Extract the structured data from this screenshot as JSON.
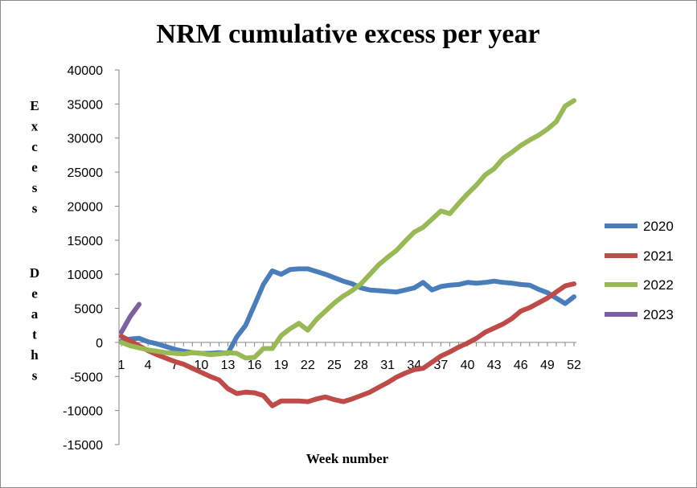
{
  "chart_data": {
    "type": "line",
    "title": "NRM cumulative excess per year",
    "xlabel": "Week number",
    "ylabel": "Excess Deaths",
    "ylim": [
      -15000,
      40000
    ],
    "yticks": [
      40000,
      35000,
      30000,
      25000,
      20000,
      15000,
      10000,
      5000,
      0,
      -5000,
      -10000,
      -15000
    ],
    "xlim": [
      1,
      52
    ],
    "xticks": [
      1,
      4,
      7,
      10,
      13,
      16,
      19,
      22,
      25,
      28,
      31,
      34,
      37,
      40,
      43,
      46,
      49,
      52
    ],
    "legend_position": "right",
    "grid": false,
    "series": [
      {
        "name": "2020",
        "color": "#4a7ebb",
        "x": [
          1,
          2,
          3,
          4,
          5,
          6,
          7,
          8,
          9,
          10,
          11,
          12,
          13,
          14,
          15,
          16,
          17,
          18,
          19,
          20,
          21,
          22,
          23,
          24,
          25,
          26,
          27,
          28,
          29,
          30,
          31,
          32,
          33,
          34,
          35,
          36,
          37,
          38,
          39,
          40,
          41,
          42,
          43,
          44,
          45,
          46,
          47,
          48,
          49,
          50,
          51,
          52
        ],
        "values": [
          200,
          500,
          600,
          100,
          -200,
          -600,
          -1000,
          -1300,
          -1500,
          -1600,
          -1600,
          -1500,
          -1600,
          800,
          2500,
          5500,
          8500,
          10500,
          10000,
          10700,
          10800,
          10800,
          10400,
          10000,
          9500,
          9000,
          8600,
          8000,
          7700,
          7600,
          7500,
          7400,
          7700,
          8000,
          8800,
          7700,
          8200,
          8400,
          8500,
          8800,
          8700,
          8800,
          9000,
          8800,
          8700,
          8500,
          8400,
          7800,
          7300,
          6500,
          5700,
          6700
        ]
      },
      {
        "name": "2021",
        "color": "#be4b48",
        "x": [
          1,
          2,
          3,
          4,
          5,
          6,
          7,
          8,
          9,
          10,
          11,
          12,
          13,
          14,
          15,
          16,
          17,
          18,
          19,
          20,
          21,
          22,
          23,
          24,
          25,
          26,
          27,
          28,
          29,
          30,
          31,
          32,
          33,
          34,
          35,
          36,
          37,
          38,
          39,
          40,
          41,
          42,
          43,
          44,
          45,
          46,
          47,
          48,
          49,
          50,
          51,
          52
        ],
        "values": [
          900,
          200,
          -500,
          -1200,
          -1800,
          -2300,
          -2800,
          -3200,
          -3800,
          -4400,
          -5000,
          -5500,
          -6800,
          -7500,
          -7300,
          -7400,
          -7800,
          -9300,
          -8600,
          -8600,
          -8600,
          -8700,
          -8300,
          -8000,
          -8400,
          -8700,
          -8300,
          -7800,
          -7300,
          -6600,
          -5900,
          -5100,
          -4500,
          -4000,
          -3800,
          -2900,
          -2000,
          -1400,
          -700,
          -100,
          600,
          1500,
          2100,
          2700,
          3500,
          4600,
          5100,
          5800,
          6500,
          7400,
          8300,
          8600
        ]
      },
      {
        "name": "2022",
        "color": "#98b954",
        "x": [
          1,
          2,
          3,
          4,
          5,
          6,
          7,
          8,
          9,
          10,
          11,
          12,
          13,
          14,
          15,
          16,
          17,
          18,
          19,
          20,
          21,
          22,
          23,
          24,
          25,
          26,
          27,
          28,
          29,
          30,
          31,
          32,
          33,
          34,
          35,
          36,
          37,
          38,
          39,
          40,
          41,
          42,
          43,
          44,
          45,
          46,
          47,
          48,
          49,
          50,
          51,
          52
        ],
        "values": [
          0,
          -500,
          -800,
          -1100,
          -1300,
          -1500,
          -1600,
          -1700,
          -1500,
          -1600,
          -1800,
          -1700,
          -1500,
          -1600,
          -2300,
          -2200,
          -900,
          -900,
          1000,
          2000,
          2800,
          1800,
          3400,
          4600,
          5800,
          6800,
          7600,
          8600,
          10000,
          11400,
          12500,
          13500,
          14900,
          16200,
          16900,
          18100,
          19300,
          18900,
          20400,
          21800,
          23100,
          24600,
          25500,
          27000,
          27900,
          28900,
          29700,
          30400,
          31300,
          32400,
          34700,
          35500
        ]
      },
      {
        "name": "2023",
        "color": "#7d60a0",
        "x": [
          1,
          2,
          3
        ],
        "values": [
          1500,
          3800,
          5600
        ]
      }
    ]
  }
}
